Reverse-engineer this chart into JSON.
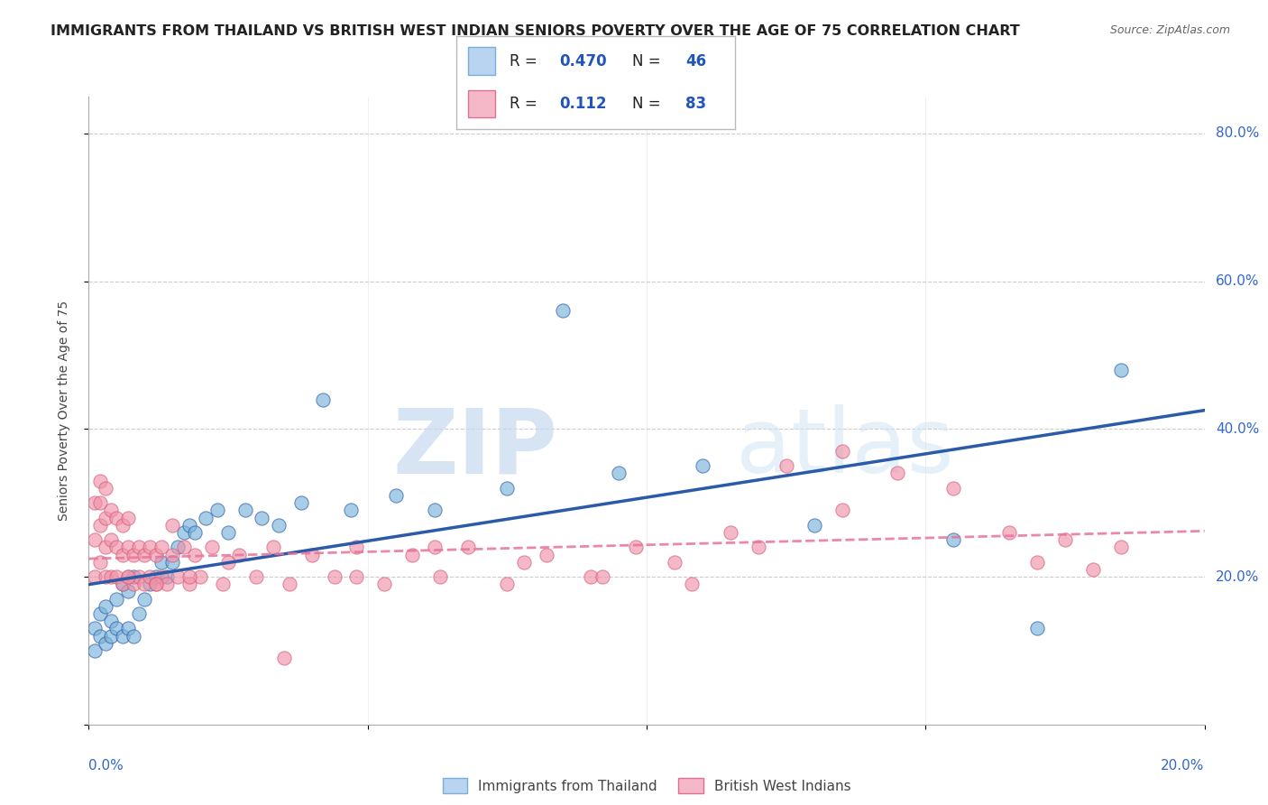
{
  "title": "IMMIGRANTS FROM THAILAND VS BRITISH WEST INDIAN SENIORS POVERTY OVER THE AGE OF 75 CORRELATION CHART",
  "source": "Source: ZipAtlas.com",
  "ylabel": "Seniors Poverty Over the Age of 75",
  "watermark_zip": "ZIP",
  "watermark_atlas": "atlas",
  "xlim": [
    0.0,
    0.2
  ],
  "ylim": [
    0.0,
    0.85
  ],
  "y_ticks": [
    0.0,
    0.2,
    0.4,
    0.6,
    0.8
  ],
  "y_tick_labels": [
    "",
    "20.0%",
    "40.0%",
    "60.0%",
    "80.0%"
  ],
  "thailand_color": "#7ab3d9",
  "bwi_color": "#f093a8",
  "thailand_line_color": "#2B5BA8",
  "bwi_line_color": "#e8729a",
  "background_color": "#ffffff",
  "grid_color": "#cccccc",
  "title_fontsize": 11.5,
  "source_fontsize": 9,
  "axis_label_fontsize": 10,
  "tick_fontsize": 11,
  "legend_fontsize": 12,
  "thailand_scatter_x": [
    0.001,
    0.001,
    0.002,
    0.002,
    0.003,
    0.003,
    0.004,
    0.004,
    0.005,
    0.005,
    0.006,
    0.006,
    0.007,
    0.007,
    0.008,
    0.008,
    0.009,
    0.01,
    0.011,
    0.012,
    0.013,
    0.014,
    0.015,
    0.016,
    0.017,
    0.018,
    0.019,
    0.021,
    0.023,
    0.025,
    0.028,
    0.031,
    0.034,
    0.038,
    0.042,
    0.047,
    0.055,
    0.062,
    0.075,
    0.085,
    0.095,
    0.11,
    0.13,
    0.155,
    0.17,
    0.185
  ],
  "thailand_scatter_y": [
    0.1,
    0.13,
    0.12,
    0.15,
    0.11,
    0.16,
    0.12,
    0.14,
    0.13,
    0.17,
    0.12,
    0.19,
    0.13,
    0.18,
    0.12,
    0.2,
    0.15,
    0.17,
    0.19,
    0.2,
    0.22,
    0.2,
    0.22,
    0.24,
    0.26,
    0.27,
    0.26,
    0.28,
    0.29,
    0.26,
    0.29,
    0.28,
    0.27,
    0.3,
    0.44,
    0.29,
    0.31,
    0.29,
    0.32,
    0.56,
    0.34,
    0.35,
    0.27,
    0.25,
    0.13,
    0.48
  ],
  "bwi_scatter_x": [
    0.001,
    0.001,
    0.001,
    0.002,
    0.002,
    0.002,
    0.002,
    0.003,
    0.003,
    0.003,
    0.003,
    0.004,
    0.004,
    0.004,
    0.005,
    0.005,
    0.005,
    0.006,
    0.006,
    0.006,
    0.007,
    0.007,
    0.007,
    0.008,
    0.008,
    0.009,
    0.009,
    0.01,
    0.01,
    0.011,
    0.011,
    0.012,
    0.012,
    0.013,
    0.013,
    0.014,
    0.015,
    0.015,
    0.016,
    0.017,
    0.018,
    0.019,
    0.02,
    0.022,
    0.024,
    0.027,
    0.03,
    0.033,
    0.036,
    0.04,
    0.044,
    0.048,
    0.053,
    0.058,
    0.063,
    0.068,
    0.075,
    0.082,
    0.09,
    0.098,
    0.105,
    0.115,
    0.125,
    0.135,
    0.145,
    0.155,
    0.165,
    0.17,
    0.175,
    0.18,
    0.185,
    0.135,
    0.12,
    0.108,
    0.092,
    0.078,
    0.062,
    0.048,
    0.035,
    0.025,
    0.018,
    0.012,
    0.007
  ],
  "bwi_scatter_y": [
    0.2,
    0.25,
    0.3,
    0.22,
    0.27,
    0.3,
    0.33,
    0.2,
    0.24,
    0.28,
    0.32,
    0.2,
    0.25,
    0.29,
    0.2,
    0.24,
    0.28,
    0.19,
    0.23,
    0.27,
    0.2,
    0.24,
    0.28,
    0.19,
    0.23,
    0.2,
    0.24,
    0.19,
    0.23,
    0.2,
    0.24,
    0.19,
    0.23,
    0.2,
    0.24,
    0.19,
    0.23,
    0.27,
    0.2,
    0.24,
    0.19,
    0.23,
    0.2,
    0.24,
    0.19,
    0.23,
    0.2,
    0.24,
    0.19,
    0.23,
    0.2,
    0.24,
    0.19,
    0.23,
    0.2,
    0.24,
    0.19,
    0.23,
    0.2,
    0.24,
    0.22,
    0.26,
    0.35,
    0.29,
    0.34,
    0.32,
    0.26,
    0.22,
    0.25,
    0.21,
    0.24,
    0.37,
    0.24,
    0.19,
    0.2,
    0.22,
    0.24,
    0.2,
    0.09,
    0.22,
    0.2,
    0.19,
    0.2
  ]
}
